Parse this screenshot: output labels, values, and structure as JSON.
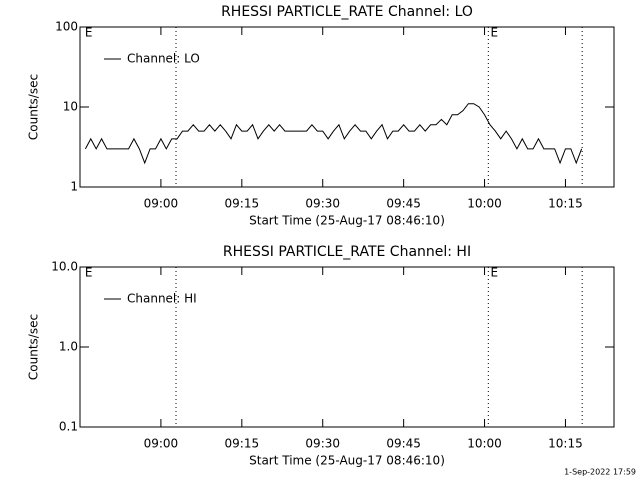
{
  "chart_data": [
    {
      "type": "line",
      "title": "RHESSI PARTICLE_RATE Channel: LO",
      "x_label": "Start Time (25-Aug-17 08:46:10)",
      "y_label": "Counts/sec",
      "log_y": true,
      "xlim": [
        525,
        624
      ],
      "ylim": [
        1,
        100
      ],
      "xticks": [
        {
          "value": 540,
          "label": "09:00"
        },
        {
          "value": 555,
          "label": "09:15"
        },
        {
          "value": 570,
          "label": "09:30"
        },
        {
          "value": 585,
          "label": "09:45"
        },
        {
          "value": 600,
          "label": "10:00"
        },
        {
          "value": 615,
          "label": "10:15"
        }
      ],
      "yticks": [
        1,
        10,
        100
      ],
      "vlines": [
        542.8,
        600.7,
        618.1
      ],
      "flags": [
        {
          "x": 525.9,
          "label": "E"
        },
        {
          "x": 601.1,
          "label": "E"
        }
      ],
      "x": [
        526,
        527,
        528,
        529,
        530,
        531,
        532,
        533,
        534,
        535,
        536,
        537,
        538,
        539,
        540,
        541,
        542,
        543,
        544,
        545,
        546,
        547,
        548,
        549,
        550,
        551,
        552,
        553,
        554,
        555,
        556,
        557,
        558,
        559,
        560,
        561,
        562,
        563,
        564,
        565,
        566,
        567,
        568,
        569,
        570,
        571,
        572,
        573,
        574,
        575,
        576,
        577,
        578,
        579,
        580,
        581,
        582,
        583,
        584,
        585,
        586,
        587,
        588,
        589,
        590,
        591,
        592,
        593,
        594,
        595,
        596,
        597,
        598,
        599,
        600,
        601,
        602,
        603,
        604,
        605,
        606,
        607,
        608,
        609,
        610,
        611,
        612,
        613,
        614,
        615,
        616,
        617,
        618
      ],
      "series": [
        {
          "name": "Channel: LO",
          "color": "#000000",
          "values": [
            3,
            4,
            3,
            4,
            3,
            3,
            3,
            3,
            3,
            4,
            3,
            2,
            3,
            3,
            4,
            3,
            4,
            4,
            5,
            5,
            6,
            5,
            5,
            6,
            5,
            6,
            5,
            4,
            6,
            5,
            5,
            6,
            4,
            5,
            6,
            5,
            6,
            5,
            5,
            5,
            5,
            5,
            6,
            5,
            5,
            4,
            5,
            6,
            4,
            5,
            6,
            5,
            5,
            4,
            5,
            6,
            4,
            5,
            5,
            6,
            5,
            5,
            6,
            5,
            6,
            6,
            7,
            6,
            8,
            8,
            9,
            11,
            11,
            10,
            8,
            6,
            5,
            4,
            5,
            4,
            3,
            4,
            3,
            3,
            4,
            3,
            3,
            3,
            2,
            3,
            3,
            2,
            3
          ]
        }
      ]
    },
    {
      "type": "line",
      "title": "RHESSI PARTICLE_RATE Channel: HI",
      "x_label": "Start Time (25-Aug-17 08:46:10)",
      "y_label": "Counts/sec",
      "log_y": true,
      "xlim": [
        525,
        624
      ],
      "ylim": [
        0.1,
        10
      ],
      "xticks": [
        {
          "value": 540,
          "label": "09:00"
        },
        {
          "value": 555,
          "label": "09:15"
        },
        {
          "value": 570,
          "label": "09:30"
        },
        {
          "value": 585,
          "label": "09:45"
        },
        {
          "value": 600,
          "label": "10:00"
        },
        {
          "value": 615,
          "label": "10:15"
        }
      ],
      "yticks": [
        0.1,
        {
          "value": 1,
          "label": "1.0"
        },
        {
          "value": 10,
          "label": "10.0"
        }
      ],
      "vlines": [
        542.8,
        600.7,
        618.1
      ],
      "flags": [
        {
          "x": 525.9,
          "label": "E"
        },
        {
          "x": 601.1,
          "label": "E"
        }
      ],
      "x": [],
      "series": [
        {
          "name": "Channel: HI",
          "color": "#000000",
          "values": []
        }
      ]
    }
  ],
  "footer": "1-Sep-2022 17:59"
}
